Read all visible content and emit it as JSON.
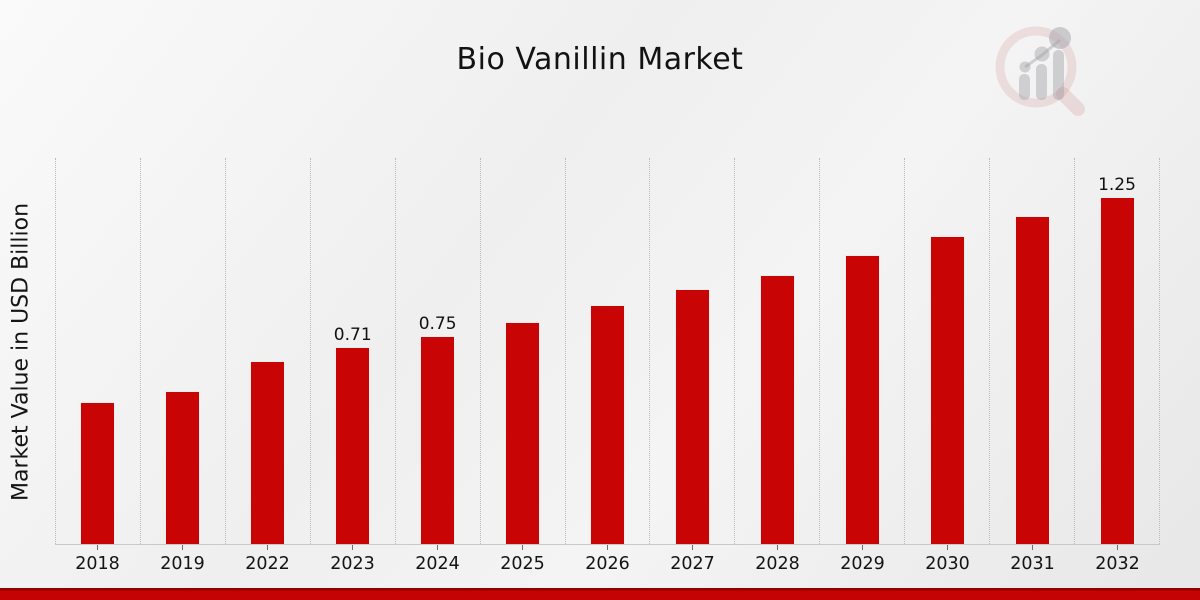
{
  "title": "Bio Vanillin Market",
  "watermark_icon": "magnifier-bar-chart-logo",
  "colors": {
    "bar": "#c90404",
    "footer_band": "#c40404",
    "footer_band_edge": "#8f0101"
  },
  "chart_data": {
    "type": "bar",
    "title": "Bio Vanillin Market",
    "xlabel": "",
    "ylabel": "Market Value in USD Billion",
    "categories": [
      "2018",
      "2019",
      "2022",
      "2023",
      "2024",
      "2025",
      "2026",
      "2027",
      "2028",
      "2029",
      "2030",
      "2031",
      "2032"
    ],
    "values": [
      0.51,
      0.55,
      0.66,
      0.71,
      0.75,
      0.8,
      0.86,
      0.92,
      0.97,
      1.04,
      1.11,
      1.18,
      1.25
    ],
    "value_labels": [
      "",
      "",
      "",
      "0.71",
      "0.75",
      "",
      "",
      "",
      "",
      "",
      "",
      "",
      "1.25"
    ],
    "ylim": [
      0,
      1.39
    ],
    "grid": "vertical-dotted",
    "legend": "none",
    "y_tick_labels_visible": false
  }
}
